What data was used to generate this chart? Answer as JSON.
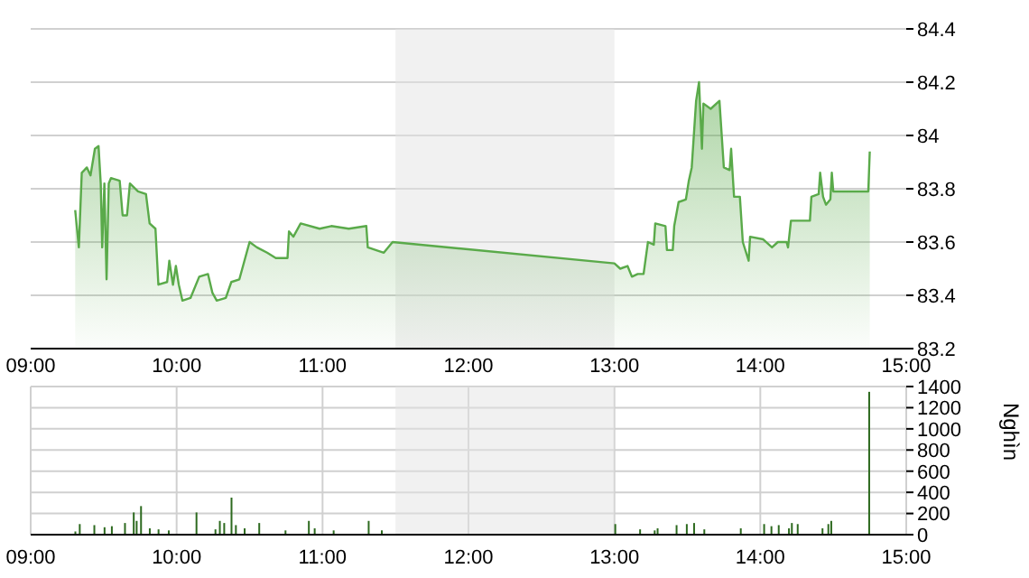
{
  "chart_data": [
    {
      "type": "area",
      "tick_labels": "y",
      "grid": true,
      "xlim": [
        9,
        15
      ],
      "ylim": [
        83.2,
        84.4
      ],
      "xticks": [
        {
          "value": 9,
          "label": null
        },
        {
          "value": 10,
          "label": null
        },
        {
          "value": 11,
          "label": null
        },
        {
          "value": 12,
          "label": null
        },
        {
          "value": 13,
          "label": null
        },
        {
          "value": 14,
          "label": null
        },
        {
          "value": 15,
          "label": null
        }
      ],
      "yticks": [
        83.2,
        83.4,
        83.6,
        83.8,
        84,
        84.2,
        84.4
      ],
      "bands": [
        {
          "axis": "x",
          "from": 11.5,
          "to": 13,
          "color": "#e4e4e4"
        }
      ],
      "x": [
        9.305,
        9.33,
        9.35,
        9.385,
        9.41,
        9.44,
        9.465,
        9.48,
        9.49,
        9.505,
        9.52,
        9.535,
        9.55,
        9.61,
        9.63,
        9.66,
        9.68,
        9.735,
        9.79,
        9.815,
        9.855,
        9.875,
        9.935,
        9.95,
        9.975,
        9.995,
        10.015,
        10.04,
        10.095,
        10.155,
        10.215,
        10.245,
        10.275,
        10.337,
        10.375,
        10.43,
        10.5,
        10.55,
        10.62,
        10.68,
        10.76,
        10.77,
        10.8,
        10.85,
        10.98,
        11.06,
        11.18,
        11.3,
        11.31,
        11.42,
        11.48,
        13,
        13.04,
        13.09,
        13.12,
        13.16,
        13.2,
        13.23,
        13.27,
        13.28,
        13.35,
        13.36,
        13.4,
        13.41,
        13.44,
        13.49,
        13.51,
        13.53,
        13.56,
        13.58,
        13.6,
        13.61,
        13.66,
        13.72,
        13.75,
        13.79,
        13.8,
        13.82,
        13.86,
        13.88,
        13.92,
        13.93,
        14.02,
        14.08,
        14.12,
        14.18,
        14.19,
        14.21,
        14.28,
        14.34,
        14.35,
        14.4,
        14.41,
        14.43,
        14.45,
        14.48,
        14.49,
        14.5,
        14.74,
        14.75
      ],
      "series": [
        {
          "color": "#5aaa4a",
          "values": [
            83.72,
            83.58,
            83.86,
            83.88,
            83.85,
            83.95,
            83.96,
            83.82,
            83.58,
            83.82,
            83.46,
            83.82,
            83.84,
            83.83,
            83.7,
            83.7,
            83.82,
            83.79,
            83.78,
            83.67,
            83.65,
            83.44,
            83.45,
            83.53,
            83.44,
            83.51,
            83.44,
            83.38,
            83.39,
            83.47,
            83.48,
            83.41,
            83.38,
            83.39,
            83.45,
            83.46,
            83.6,
            83.58,
            83.56,
            83.54,
            83.54,
            83.64,
            83.62,
            83.67,
            83.65,
            83.66,
            83.65,
            83.66,
            83.58,
            83.56,
            83.6,
            83.52,
            83.5,
            83.51,
            83.47,
            83.48,
            83.48,
            83.6,
            83.59,
            83.67,
            83.66,
            83.57,
            83.57,
            83.66,
            83.75,
            83.76,
            83.83,
            83.88,
            84.13,
            84.2,
            83.95,
            84.12,
            84.1,
            84.13,
            83.88,
            83.87,
            83.95,
            83.77,
            83.77,
            83.6,
            83.53,
            83.62,
            83.61,
            83.58,
            83.6,
            83.6,
            83.58,
            83.68,
            83.68,
            83.68,
            83.77,
            83.78,
            83.86,
            83.77,
            83.74,
            83.76,
            83.86,
            83.79,
            83.79,
            83.94
          ]
        }
      ]
    },
    {
      "type": "bar",
      "grid": true,
      "ylabel": "Nghìn",
      "xlim": [
        9,
        15
      ],
      "ylim": [
        0,
        1400
      ],
      "x2lim": [
        9,
        15
      ],
      "xticks": [
        {
          "value": 9,
          "label": "09:00"
        },
        {
          "value": 10,
          "label": "10:00"
        },
        {
          "value": 11,
          "label": "11:00"
        },
        {
          "value": 12,
          "label": "12:00"
        },
        {
          "value": 13,
          "label": "13:00"
        },
        {
          "value": 14,
          "label": "14:00"
        },
        {
          "value": 15,
          "label": "15:00"
        }
      ],
      "x2ticks": [
        {
          "value": 9,
          "label": "09:00"
        },
        {
          "value": 10,
          "label": "10:00"
        },
        {
          "value": 11,
          "label": "11:00"
        },
        {
          "value": 12,
          "label": "12:00"
        },
        {
          "value": 13,
          "label": "13:00"
        },
        {
          "value": 14,
          "label": "14:00"
        },
        {
          "value": 15,
          "label": "15:00"
        }
      ],
      "yticks": [
        0,
        200,
        400,
        600,
        800,
        1000,
        1200,
        1400
      ],
      "bands": [
        {
          "axis": "x",
          "from": 11.5,
          "to": 13,
          "color": "#e4e4e4"
        }
      ],
      "x": [
        9.31,
        9.34,
        9.44,
        9.51,
        9.56,
        9.65,
        9.71,
        9.73,
        9.76,
        9.82,
        9.88,
        9.95,
        10.14,
        10.27,
        10.3,
        10.33,
        10.38,
        10.41,
        10.47,
        10.57,
        10.75,
        10.91,
        10.95,
        11.08,
        11.32,
        11.41,
        13.01,
        13.18,
        13.28,
        13.3,
        13.43,
        13.5,
        13.55,
        13.62,
        13.87,
        14.03,
        14.08,
        14.13,
        14.2,
        14.22,
        14.26,
        14.43,
        14.47,
        14.49,
        14.75
      ],
      "series": [
        {
          "color": "#2d6a1f",
          "values": [
            30,
            100,
            90,
            70,
            80,
            110,
            210,
            130,
            270,
            60,
            50,
            40,
            210,
            50,
            130,
            110,
            350,
            90,
            60,
            110,
            40,
            130,
            60,
            40,
            130,
            40,
            100,
            50,
            40,
            60,
            90,
            100,
            110,
            50,
            60,
            100,
            80,
            90,
            60,
            110,
            100,
            60,
            100,
            130,
            1350
          ]
        }
      ]
    }
  ]
}
